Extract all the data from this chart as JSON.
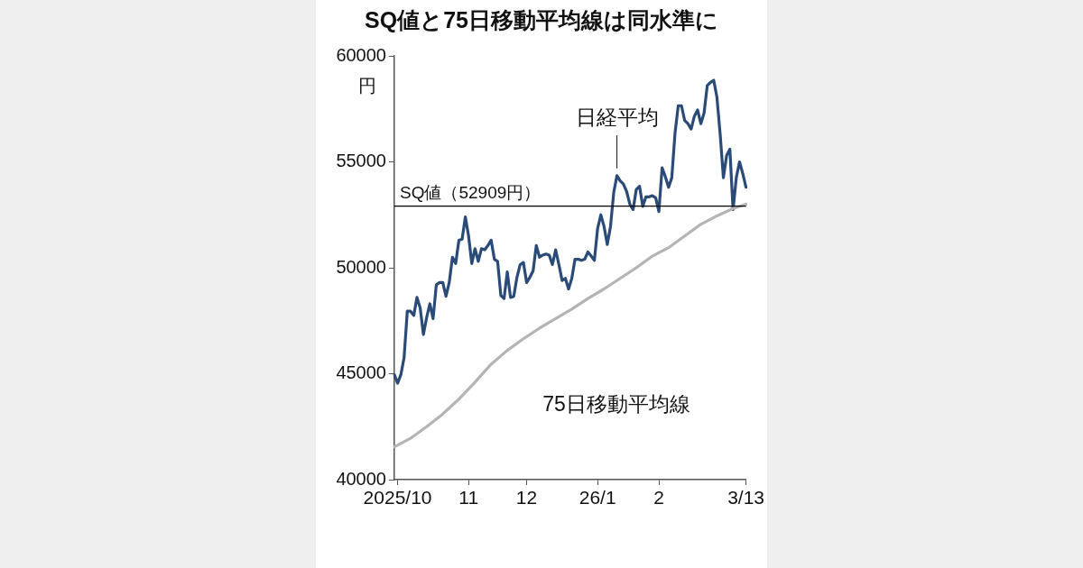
{
  "chart_data": {
    "type": "line",
    "title": "SQ値と75日移動平均線は同水準に",
    "ylabel": "円",
    "categories": [
      null,
      "2025/10",
      null,
      null,
      null,
      null,
      null,
      null,
      null,
      null,
      null,
      null,
      null,
      null,
      null,
      null,
      null,
      null,
      null,
      null,
      null,
      null,
      null,
      "11",
      null,
      null,
      null,
      null,
      null,
      null,
      null,
      null,
      null,
      null,
      null,
      null,
      null,
      null,
      null,
      null,
      null,
      "12",
      null,
      null,
      null,
      null,
      null,
      null,
      null,
      null,
      null,
      null,
      null,
      null,
      null,
      null,
      null,
      null,
      null,
      null,
      null,
      null,
      null,
      "26/1",
      null,
      null,
      null,
      null,
      null,
      null,
      null,
      null,
      null,
      null,
      null,
      null,
      null,
      null,
      null,
      null,
      null,
      null,
      "2",
      null,
      null,
      null,
      null,
      null,
      null,
      null,
      null,
      null,
      null,
      null,
      null,
      null,
      null,
      null,
      null,
      null,
      null,
      null,
      null,
      null,
      null,
      null,
      null,
      null,
      null,
      "3/13"
    ],
    "series": [
      {
        "name": "日経平均",
        "color": "#2a4a78",
        "values": [
          44950,
          44550,
          44950,
          45750,
          47950,
          47950,
          47750,
          48600,
          48100,
          46850,
          47650,
          48300,
          47600,
          49200,
          49300,
          49300,
          48650,
          49300,
          50500,
          50200,
          51300,
          51350,
          52400,
          51500,
          50200,
          50900,
          50300,
          50900,
          50850,
          51050,
          51300,
          50400,
          50300,
          48700,
          48550,
          49800,
          48600,
          48650,
          49550,
          50150,
          50250,
          49300,
          49550,
          49850,
          51050,
          50500,
          50600,
          50650,
          50600,
          50150,
          50850,
          50150,
          49400,
          49500,
          49000,
          49500,
          50400,
          50400,
          50350,
          50400,
          50750,
          50550,
          50350,
          51850,
          52500,
          51950,
          51100,
          51950,
          53550,
          54350,
          54100,
          53950,
          53600,
          53000,
          52750,
          53700,
          53850,
          52900,
          53350,
          53350,
          53400,
          53300,
          52650,
          54720,
          54300,
          53800,
          54250,
          56350,
          57650,
          57650,
          56950,
          56800,
          56550,
          57150,
          57450,
          56800,
          57300,
          58600,
          58750,
          58850,
          58050,
          56300,
          54250,
          55300,
          55600,
          52750,
          54250,
          55000,
          54450,
          53800
        ]
      },
      {
        "name": "75日移動平均線",
        "color": "#b4b4b4",
        "values": [
          41550,
          null,
          null,
          null,
          null,
          41950,
          null,
          null,
          null,
          null,
          42500,
          null,
          null,
          null,
          null,
          43100,
          null,
          null,
          null,
          null,
          43800,
          null,
          null,
          null,
          null,
          44600,
          null,
          null,
          null,
          null,
          45450,
          null,
          null,
          null,
          null,
          46100,
          null,
          null,
          null,
          null,
          46650,
          null,
          null,
          null,
          null,
          47150,
          null,
          null,
          null,
          null,
          47600,
          null,
          null,
          null,
          null,
          48050,
          null,
          null,
          null,
          null,
          48550,
          null,
          null,
          null,
          null,
          49000,
          null,
          null,
          null,
          null,
          49500,
          null,
          null,
          null,
          null,
          50000,
          null,
          null,
          null,
          null,
          50550,
          null,
          null,
          null,
          null,
          50950,
          null,
          null,
          null,
          null,
          51500,
          null,
          null,
          null,
          null,
          52050,
          null,
          null,
          null,
          null,
          52450,
          null,
          null,
          null,
          null,
          52800,
          null,
          null,
          null,
          53000
        ]
      }
    ],
    "ylim": [
      40000,
      60000
    ],
    "yticks": [
      40000,
      45000,
      50000,
      55000,
      60000
    ],
    "ref_lines": [
      {
        "axis": "y",
        "value": 52909,
        "label": "SQ値（52909円）",
        "color": "#000000"
      }
    ],
    "grid": false,
    "legend": false,
    "marker": "none",
    "line_style": "solid"
  }
}
